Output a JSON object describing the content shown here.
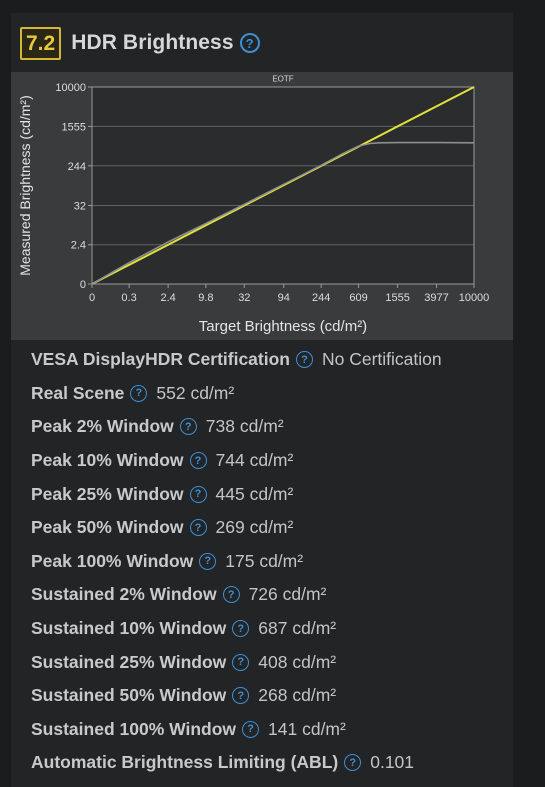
{
  "section": {
    "score": "7.2",
    "title": "HDR Brightness"
  },
  "chart_data": {
    "type": "line",
    "title": "EOTF",
    "xlabel": "Target Brightness (cd/m²)",
    "ylabel": "Measured Brightness (cd/m²)",
    "x_ticks": [
      "0",
      "0.3",
      "2.4",
      "9.8",
      "32",
      "94",
      "244",
      "609",
      "1555",
      "3977",
      "10000"
    ],
    "y_ticks": [
      "0",
      "2.4",
      "32",
      "244",
      "1555",
      "10000"
    ],
    "grid": true,
    "series": [
      {
        "color": "#e2e23a",
        "x": [
          0,
          10000
        ],
        "y": [
          0,
          10000
        ]
      },
      {
        "color": "#8e8e8e",
        "x": [
          0,
          0.3,
          2.4,
          9.8,
          32,
          94,
          244,
          400,
          609,
          800,
          1000,
          1555,
          3977,
          10000
        ],
        "y": [
          0,
          0.4,
          3,
          11,
          34,
          98,
          250,
          420,
          620,
          700,
          726,
          730,
          730,
          726
        ]
      }
    ]
  },
  "measurements": [
    {
      "label": "VESA DisplayHDR Certification",
      "value": "No Certification"
    },
    {
      "label": "Real Scene",
      "value": "552 cd/m²"
    },
    {
      "label": "Peak 2% Window",
      "value": "738 cd/m²"
    },
    {
      "label": "Peak 10% Window",
      "value": "744 cd/m²"
    },
    {
      "label": "Peak 25% Window",
      "value": "445 cd/m²"
    },
    {
      "label": "Peak 50% Window",
      "value": "269 cd/m²"
    },
    {
      "label": "Peak 100% Window",
      "value": "175 cd/m²"
    },
    {
      "label": "Sustained 2% Window",
      "value": "726 cd/m²"
    },
    {
      "label": "Sustained 10% Window",
      "value": "687 cd/m²"
    },
    {
      "label": "Sustained 25% Window",
      "value": "408 cd/m²"
    },
    {
      "label": "Sustained 50% Window",
      "value": "268 cd/m²"
    },
    {
      "label": "Sustained 100% Window",
      "value": "141 cd/m²"
    },
    {
      "label": "Automatic Brightness Limiting (ABL)",
      "value": "0.101"
    }
  ],
  "icons": {
    "help": "question-circle-icon",
    "help_glyph": "?"
  },
  "colors": {
    "accent_badge": "#d6b634",
    "help_icon": "#3d8fd6",
    "target_line": "#e2e23a",
    "measured_line": "#8e8e8e"
  }
}
